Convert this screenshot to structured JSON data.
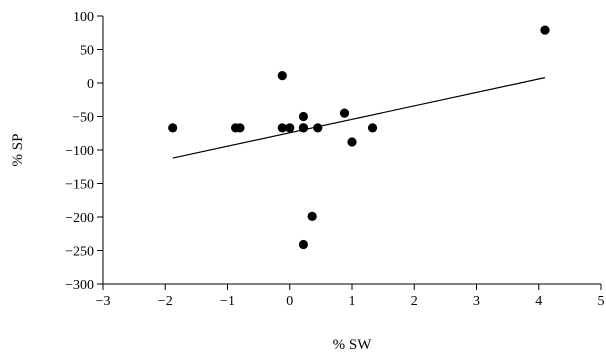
{
  "chart_data": {
    "type": "scatter",
    "xlabel": "% SW",
    "ylabel": "% SP",
    "xlim": [
      -3,
      5
    ],
    "ylim": [
      -300,
      100
    ],
    "xticks": [
      -3,
      -2,
      -1,
      0,
      1,
      2,
      3,
      4,
      5
    ],
    "yticks": [
      100,
      50,
      0,
      -50,
      -100,
      -150,
      -200,
      -250,
      -300
    ],
    "xtick_labels": [
      "−3",
      "−2",
      "−1",
      "0",
      "1",
      "2",
      "3",
      "4",
      "5"
    ],
    "ytick_labels": [
      "100",
      "50",
      "0",
      "−50",
      "−100",
      "−150",
      "−200",
      "−250",
      "−300"
    ],
    "grid": false,
    "points": [
      {
        "x": -1.88,
        "y": -67
      },
      {
        "x": -0.87,
        "y": -67
      },
      {
        "x": -0.8,
        "y": -67
      },
      {
        "x": -0.12,
        "y": 11
      },
      {
        "x": -0.12,
        "y": -67
      },
      {
        "x": 0.0,
        "y": -67
      },
      {
        "x": 0.22,
        "y": -50
      },
      {
        "x": 0.22,
        "y": -67
      },
      {
        "x": 0.22,
        "y": -67
      },
      {
        "x": 0.22,
        "y": -241
      },
      {
        "x": 0.36,
        "y": -199
      },
      {
        "x": 0.45,
        "y": -67
      },
      {
        "x": 0.88,
        "y": -45
      },
      {
        "x": 1.0,
        "y": -88
      },
      {
        "x": 1.33,
        "y": -67
      },
      {
        "x": 4.1,
        "y": 79
      }
    ],
    "trendline": {
      "x": [
        -1.88,
        4.1
      ],
      "y": [
        -112,
        8
      ]
    },
    "colors": {
      "marker": "#000000",
      "line": "#000000",
      "axis": "#000000"
    }
  }
}
